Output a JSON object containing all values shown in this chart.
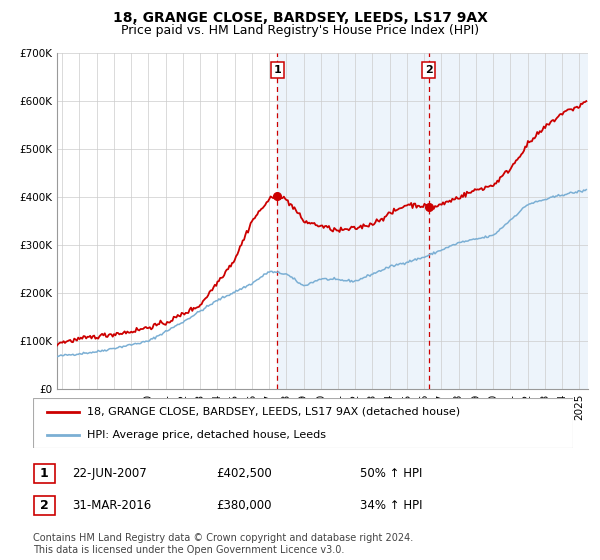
{
  "title": "18, GRANGE CLOSE, BARDSEY, LEEDS, LS17 9AX",
  "subtitle": "Price paid vs. HM Land Registry's House Price Index (HPI)",
  "ylim": [
    0,
    700000
  ],
  "yticks": [
    0,
    100000,
    200000,
    300000,
    400000,
    500000,
    600000,
    700000
  ],
  "ytick_labels": [
    "£0",
    "£100K",
    "£200K",
    "£300K",
    "£400K",
    "£500K",
    "£600K",
    "£700K"
  ],
  "xlim_start": 1994.7,
  "xlim_end": 2025.5,
  "transaction1_x": 2007.47,
  "transaction1_y": 402500,
  "transaction1_label": "22-JUN-2007",
  "transaction1_price": "£402,500",
  "transaction1_hpi": "50% ↑ HPI",
  "transaction2_x": 2016.25,
  "transaction2_y": 380000,
  "transaction2_label": "31-MAR-2016",
  "transaction2_price": "£380,000",
  "transaction2_hpi": "34% ↑ HPI",
  "line1_color": "#cc0000",
  "line2_color": "#7bafd4",
  "shade_color": "#cce0f5",
  "vline_color": "#cc0000",
  "background_color": "#ffffff",
  "legend_label1": "18, GRANGE CLOSE, BARDSEY, LEEDS, LS17 9AX (detached house)",
  "legend_label2": "HPI: Average price, detached house, Leeds",
  "footnote": "Contains HM Land Registry data © Crown copyright and database right 2024.\nThis data is licensed under the Open Government Licence v3.0.",
  "title_fontsize": 10,
  "subtitle_fontsize": 9,
  "tick_fontsize": 7.5,
  "legend_fontsize": 8,
  "footnote_fontsize": 7
}
